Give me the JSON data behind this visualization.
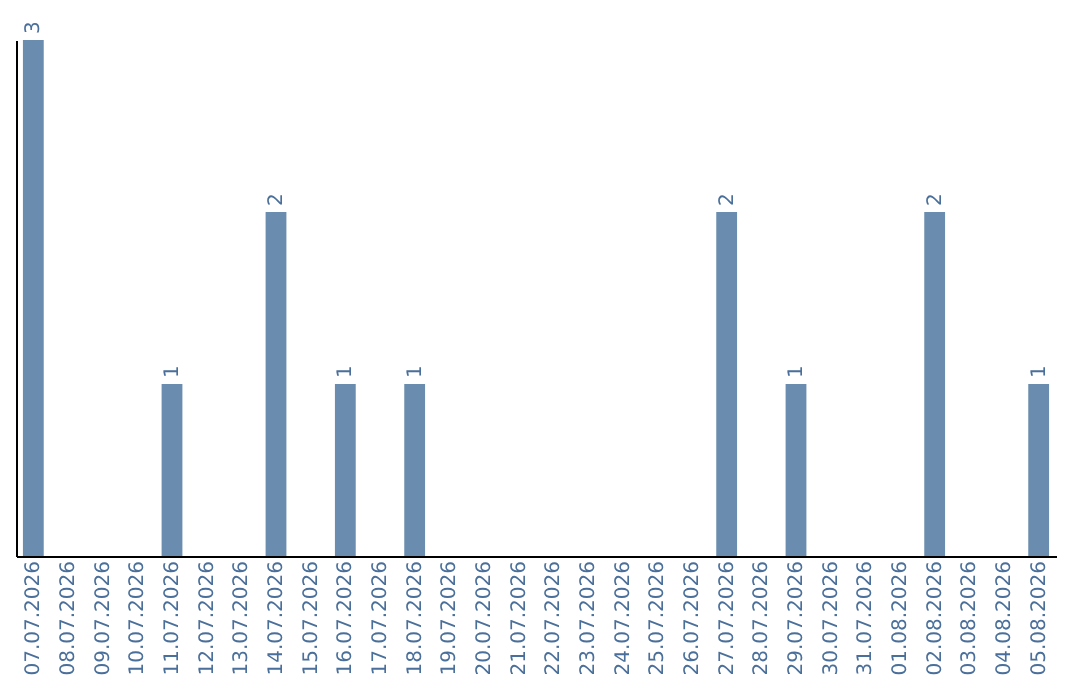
{
  "chart_data": {
    "type": "bar",
    "categories": [
      "07.07.2026",
      "08.07.2026",
      "09.07.2026",
      "10.07.2026",
      "11.07.2026",
      "12.07.2026",
      "13.07.2026",
      "14.07.2026",
      "15.07.2026",
      "16.07.2026",
      "17.07.2026",
      "18.07.2026",
      "19.07.2026",
      "20.07.2026",
      "21.07.2026",
      "22.07.2026",
      "23.07.2026",
      "24.07.2026",
      "25.07.2026",
      "26.07.2026",
      "27.07.2026",
      "28.07.2026",
      "29.07.2026",
      "30.07.2026",
      "31.07.2026",
      "01.08.2026",
      "02.08.2026",
      "03.08.2026",
      "04.08.2026",
      "05.08.2026"
    ],
    "values": [
      3,
      0,
      0,
      0,
      1,
      0,
      0,
      2,
      0,
      1,
      0,
      1,
      0,
      0,
      0,
      0,
      0,
      0,
      0,
      0,
      2,
      0,
      1,
      0,
      0,
      0,
      2,
      0,
      0,
      1
    ],
    "value_labels": [
      "3",
      null,
      null,
      null,
      "1",
      null,
      null,
      "2",
      null,
      "1",
      null,
      "1",
      null,
      null,
      null,
      null,
      null,
      null,
      null,
      null,
      "2",
      null,
      "1",
      null,
      null,
      null,
      "2",
      null,
      null,
      "1"
    ],
    "color": "#6a8caf",
    "tick_labels": "x",
    "grid": false
  }
}
